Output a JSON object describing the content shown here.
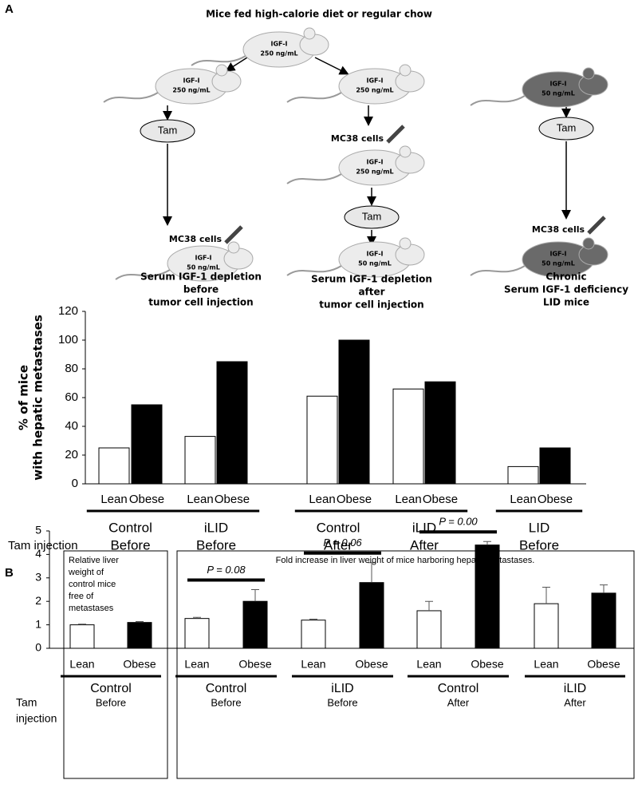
{
  "panel_labels": [
    "A",
    "B"
  ],
  "diagram": {
    "title": "Mice fed high-calorie diet or regular chow",
    "mice": [
      {
        "label": "IGF-I",
        "conc": "250 ng/mL"
      },
      {
        "label": "IGF-I",
        "conc": "250 ng/mL"
      },
      {
        "label": "IGF-I",
        "conc": "250 ng/mL"
      },
      {
        "label": "IGF-I",
        "conc": "50 ng/mL"
      },
      {
        "label": "IGF-I",
        "conc": "250 ng/mL"
      },
      {
        "label": "IGF-I",
        "conc": "50 ng/mL"
      },
      {
        "label": "IGF-I",
        "conc": "50 ng/mL"
      },
      {
        "label": "IGF-I",
        "conc": "50 ng/mL"
      }
    ],
    "tam": "Tam",
    "mc38": "MC38 cells",
    "captions": [
      [
        "Serum IGF-1 depletion",
        "before",
        "tumor cell injection"
      ],
      [
        "Serum IGF-1 depletion",
        "after",
        "tumor cell injection"
      ],
      [
        "Chronic",
        "Serum IGF-1 deficiency",
        "LID mice"
      ]
    ]
  },
  "chart_data": [
    {
      "type": "bar",
      "ylabel": [
        "% of mice",
        "with hepatic metastases"
      ],
      "ylim": [
        0,
        120
      ],
      "yticks": [
        0,
        20,
        40,
        60,
        80,
        100,
        120
      ],
      "categories": [
        "Control",
        "iLID",
        "Control",
        "iLID",
        "LID"
      ],
      "tam_injection": [
        "Before",
        "Before",
        "After",
        "After",
        "Before"
      ],
      "tam_label": [
        "Tam injection"
      ],
      "series": [
        {
          "name": "Lean",
          "color": "#ffffff",
          "values": [
            25,
            33,
            61,
            66,
            12
          ]
        },
        {
          "name": "Obese",
          "color": "#000000",
          "values": [
            55,
            85,
            100,
            71,
            25
          ]
        }
      ]
    },
    {
      "type": "bar",
      "ylim": [
        0,
        5
      ],
      "yticks": [
        0,
        1,
        2,
        3,
        4,
        5
      ],
      "box_titles": [
        [
          "Relative liver",
          "weight of",
          "control mice",
          "free of",
          "metastases"
        ],
        [
          "Fold increase in liver weight of mice harboring hepatic metastases."
        ]
      ],
      "categories": [
        "Control",
        "Control",
        "iLID",
        "Control",
        "iLID"
      ],
      "tam_injection": [
        "Before",
        "Before",
        "Before",
        "After",
        "After"
      ],
      "tam_label": [
        "Tam",
        "injection"
      ],
      "annotations": [
        "P = 0.08",
        "P = 0.06",
        "P = 0.00"
      ],
      "series": [
        {
          "name": "Lean",
          "color": "#ffffff",
          "values": [
            1.0,
            1.27,
            1.2,
            1.6,
            1.9
          ],
          "errors": [
            0.03,
            0.05,
            0.04,
            0.4,
            0.7
          ]
        },
        {
          "name": "Obese",
          "color": "#000000",
          "values": [
            1.1,
            2.0,
            2.8,
            4.4,
            2.35
          ],
          "errors": [
            0.04,
            0.5,
            0.85,
            0.15,
            0.35
          ]
        }
      ]
    }
  ]
}
